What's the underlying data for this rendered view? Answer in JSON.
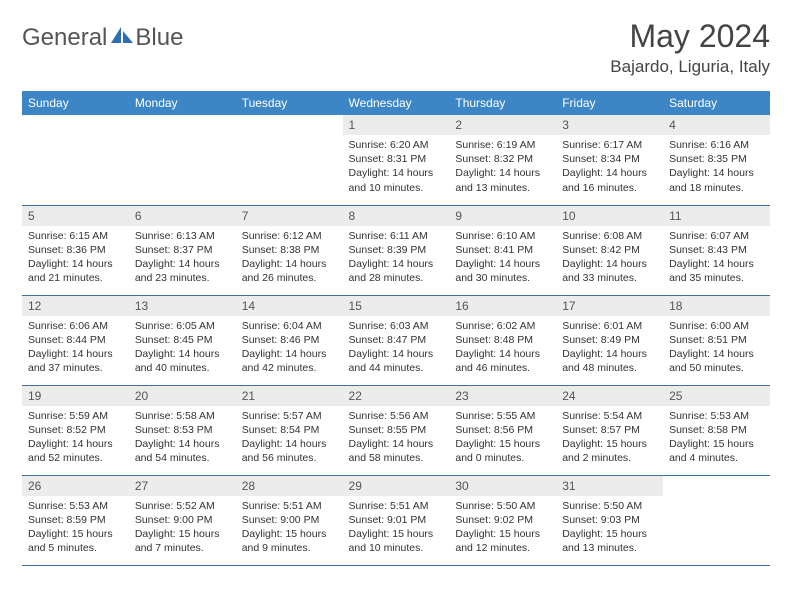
{
  "brand": {
    "name_part1": "General",
    "name_part2": "Blue"
  },
  "title": "May 2024",
  "location": "Bajardo, Liguria, Italy",
  "colors": {
    "header_bg": "#3d86c6",
    "header_text": "#ffffff",
    "daynum_bg": "#ececec",
    "rule": "#3d6fa0",
    "logo_accent": "#2e6fb4"
  },
  "weekdays": [
    "Sunday",
    "Monday",
    "Tuesday",
    "Wednesday",
    "Thursday",
    "Friday",
    "Saturday"
  ],
  "weeks": [
    [
      {
        "n": "",
        "sr": "",
        "ss": "",
        "dl": ""
      },
      {
        "n": "",
        "sr": "",
        "ss": "",
        "dl": ""
      },
      {
        "n": "",
        "sr": "",
        "ss": "",
        "dl": ""
      },
      {
        "n": "1",
        "sr": "Sunrise: 6:20 AM",
        "ss": "Sunset: 8:31 PM",
        "dl": "Daylight: 14 hours and 10 minutes."
      },
      {
        "n": "2",
        "sr": "Sunrise: 6:19 AM",
        "ss": "Sunset: 8:32 PM",
        "dl": "Daylight: 14 hours and 13 minutes."
      },
      {
        "n": "3",
        "sr": "Sunrise: 6:17 AM",
        "ss": "Sunset: 8:34 PM",
        "dl": "Daylight: 14 hours and 16 minutes."
      },
      {
        "n": "4",
        "sr": "Sunrise: 6:16 AM",
        "ss": "Sunset: 8:35 PM",
        "dl": "Daylight: 14 hours and 18 minutes."
      }
    ],
    [
      {
        "n": "5",
        "sr": "Sunrise: 6:15 AM",
        "ss": "Sunset: 8:36 PM",
        "dl": "Daylight: 14 hours and 21 minutes."
      },
      {
        "n": "6",
        "sr": "Sunrise: 6:13 AM",
        "ss": "Sunset: 8:37 PM",
        "dl": "Daylight: 14 hours and 23 minutes."
      },
      {
        "n": "7",
        "sr": "Sunrise: 6:12 AM",
        "ss": "Sunset: 8:38 PM",
        "dl": "Daylight: 14 hours and 26 minutes."
      },
      {
        "n": "8",
        "sr": "Sunrise: 6:11 AM",
        "ss": "Sunset: 8:39 PM",
        "dl": "Daylight: 14 hours and 28 minutes."
      },
      {
        "n": "9",
        "sr": "Sunrise: 6:10 AM",
        "ss": "Sunset: 8:41 PM",
        "dl": "Daylight: 14 hours and 30 minutes."
      },
      {
        "n": "10",
        "sr": "Sunrise: 6:08 AM",
        "ss": "Sunset: 8:42 PM",
        "dl": "Daylight: 14 hours and 33 minutes."
      },
      {
        "n": "11",
        "sr": "Sunrise: 6:07 AM",
        "ss": "Sunset: 8:43 PM",
        "dl": "Daylight: 14 hours and 35 minutes."
      }
    ],
    [
      {
        "n": "12",
        "sr": "Sunrise: 6:06 AM",
        "ss": "Sunset: 8:44 PM",
        "dl": "Daylight: 14 hours and 37 minutes."
      },
      {
        "n": "13",
        "sr": "Sunrise: 6:05 AM",
        "ss": "Sunset: 8:45 PM",
        "dl": "Daylight: 14 hours and 40 minutes."
      },
      {
        "n": "14",
        "sr": "Sunrise: 6:04 AM",
        "ss": "Sunset: 8:46 PM",
        "dl": "Daylight: 14 hours and 42 minutes."
      },
      {
        "n": "15",
        "sr": "Sunrise: 6:03 AM",
        "ss": "Sunset: 8:47 PM",
        "dl": "Daylight: 14 hours and 44 minutes."
      },
      {
        "n": "16",
        "sr": "Sunrise: 6:02 AM",
        "ss": "Sunset: 8:48 PM",
        "dl": "Daylight: 14 hours and 46 minutes."
      },
      {
        "n": "17",
        "sr": "Sunrise: 6:01 AM",
        "ss": "Sunset: 8:49 PM",
        "dl": "Daylight: 14 hours and 48 minutes."
      },
      {
        "n": "18",
        "sr": "Sunrise: 6:00 AM",
        "ss": "Sunset: 8:51 PM",
        "dl": "Daylight: 14 hours and 50 minutes."
      }
    ],
    [
      {
        "n": "19",
        "sr": "Sunrise: 5:59 AM",
        "ss": "Sunset: 8:52 PM",
        "dl": "Daylight: 14 hours and 52 minutes."
      },
      {
        "n": "20",
        "sr": "Sunrise: 5:58 AM",
        "ss": "Sunset: 8:53 PM",
        "dl": "Daylight: 14 hours and 54 minutes."
      },
      {
        "n": "21",
        "sr": "Sunrise: 5:57 AM",
        "ss": "Sunset: 8:54 PM",
        "dl": "Daylight: 14 hours and 56 minutes."
      },
      {
        "n": "22",
        "sr": "Sunrise: 5:56 AM",
        "ss": "Sunset: 8:55 PM",
        "dl": "Daylight: 14 hours and 58 minutes."
      },
      {
        "n": "23",
        "sr": "Sunrise: 5:55 AM",
        "ss": "Sunset: 8:56 PM",
        "dl": "Daylight: 15 hours and 0 minutes."
      },
      {
        "n": "24",
        "sr": "Sunrise: 5:54 AM",
        "ss": "Sunset: 8:57 PM",
        "dl": "Daylight: 15 hours and 2 minutes."
      },
      {
        "n": "25",
        "sr": "Sunrise: 5:53 AM",
        "ss": "Sunset: 8:58 PM",
        "dl": "Daylight: 15 hours and 4 minutes."
      }
    ],
    [
      {
        "n": "26",
        "sr": "Sunrise: 5:53 AM",
        "ss": "Sunset: 8:59 PM",
        "dl": "Daylight: 15 hours and 5 minutes."
      },
      {
        "n": "27",
        "sr": "Sunrise: 5:52 AM",
        "ss": "Sunset: 9:00 PM",
        "dl": "Daylight: 15 hours and 7 minutes."
      },
      {
        "n": "28",
        "sr": "Sunrise: 5:51 AM",
        "ss": "Sunset: 9:00 PM",
        "dl": "Daylight: 15 hours and 9 minutes."
      },
      {
        "n": "29",
        "sr": "Sunrise: 5:51 AM",
        "ss": "Sunset: 9:01 PM",
        "dl": "Daylight: 15 hours and 10 minutes."
      },
      {
        "n": "30",
        "sr": "Sunrise: 5:50 AM",
        "ss": "Sunset: 9:02 PM",
        "dl": "Daylight: 15 hours and 12 minutes."
      },
      {
        "n": "31",
        "sr": "Sunrise: 5:50 AM",
        "ss": "Sunset: 9:03 PM",
        "dl": "Daylight: 15 hours and 13 minutes."
      },
      {
        "n": "",
        "sr": "",
        "ss": "",
        "dl": ""
      }
    ]
  ]
}
